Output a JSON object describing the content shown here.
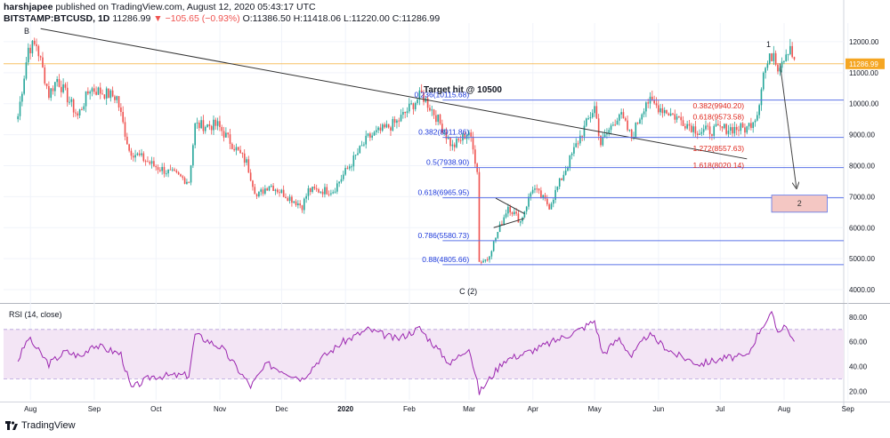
{
  "header": {
    "publisher": "harshjapee",
    "published_text": "published on TradingView.com, August 12, 2020 05:43:17 UTC",
    "symbol": "BITSTAMP:BTCUSD, 1D",
    "last": "11286.99",
    "change": "−105.65 (−0.93%)",
    "ohlc": "O:11386.50 H:11418.06 L:11220.00 C:11286.99"
  },
  "footer": {
    "brand": "TradingView"
  },
  "colors": {
    "up": "#26a69a",
    "down": "#ef5350",
    "fib_line": "#5b73e8",
    "fib_text_blue": "#1e3adb",
    "fib_text_red": "#e0281e",
    "rsi": "#9c27b0",
    "rsi_band": "#f3e5f5",
    "price_line": "#f5a623",
    "target_box": "#f4c7c3"
  },
  "chart_data": [
    {
      "type": "candlestick",
      "title": "BITSTAMP:BTCUSD, 1D",
      "ylim": [
        3600,
        12600
      ],
      "y_ticks": [
        4000,
        5000,
        6000,
        7000,
        8000,
        9000,
        10000,
        11000,
        12000
      ],
      "y_tick_labels": [
        "4000.00",
        "5000.00",
        "6000.00",
        "7000.00",
        "8000.00",
        "9000.00",
        "10000.00",
        "11000.00",
        "12000.00"
      ],
      "x_tick_labels": [
        "Aug",
        "Sep",
        "Oct",
        "Nov",
        "Dec",
        "2020",
        "Feb",
        "Mar",
        "Apr",
        "May",
        "Jun",
        "Jul",
        "Aug",
        "Sep"
      ],
      "last_price": 11286.99,
      "last_price_label": "11286.99",
      "trend_points": [
        {
          "date": "2019-08-01",
          "close": 9600
        },
        {
          "date": "2019-08-06",
          "close": 11800
        },
        {
          "date": "2019-08-10",
          "close": 11900
        },
        {
          "date": "2019-08-16",
          "close": 10300
        },
        {
          "date": "2019-08-20",
          "close": 10800
        },
        {
          "date": "2019-08-30",
          "close": 9600
        },
        {
          "date": "2019-09-05",
          "close": 10500
        },
        {
          "date": "2019-09-18",
          "close": 10200
        },
        {
          "date": "2019-09-24",
          "close": 8500
        },
        {
          "date": "2019-10-06",
          "close": 8000
        },
        {
          "date": "2019-10-23",
          "close": 7500
        },
        {
          "date": "2019-10-26",
          "close": 9300
        },
        {
          "date": "2019-11-06",
          "close": 9300
        },
        {
          "date": "2019-11-20",
          "close": 8100
        },
        {
          "date": "2019-11-25",
          "close": 7000
        },
        {
          "date": "2019-12-01",
          "close": 7400
        },
        {
          "date": "2019-12-17",
          "close": 6700
        },
        {
          "date": "2019-12-20",
          "close": 7200
        },
        {
          "date": "2020-01-01",
          "close": 7200
        },
        {
          "date": "2020-01-18",
          "close": 8900
        },
        {
          "date": "2020-02-01",
          "close": 9400
        },
        {
          "date": "2020-02-13",
          "close": 10300
        },
        {
          "date": "2020-02-20",
          "close": 9600
        },
        {
          "date": "2020-02-28",
          "close": 8600
        },
        {
          "date": "2020-03-07",
          "close": 9100
        },
        {
          "date": "2020-03-11",
          "close": 7900
        },
        {
          "date": "2020-03-12",
          "close": 4900
        },
        {
          "date": "2020-03-16",
          "close": 5000
        },
        {
          "date": "2020-03-26",
          "close": 6700
        },
        {
          "date": "2020-04-01",
          "close": 6200
        },
        {
          "date": "2020-04-07",
          "close": 7300
        },
        {
          "date": "2020-04-15",
          "close": 6700
        },
        {
          "date": "2020-04-29",
          "close": 8800
        },
        {
          "date": "2020-05-07",
          "close": 9900
        },
        {
          "date": "2020-05-10",
          "close": 8700
        },
        {
          "date": "2020-05-19",
          "close": 9700
        },
        {
          "date": "2020-05-25",
          "close": 8900
        },
        {
          "date": "2020-06-01",
          "close": 10100
        },
        {
          "date": "2020-06-10",
          "close": 9800
        },
        {
          "date": "2020-06-27",
          "close": 9100
        },
        {
          "date": "2020-07-10",
          "close": 9200
        },
        {
          "date": "2020-07-20",
          "close": 9200
        },
        {
          "date": "2020-07-25",
          "close": 9700
        },
        {
          "date": "2020-07-28",
          "close": 11000
        },
        {
          "date": "2020-08-02",
          "close": 11700
        },
        {
          "date": "2020-08-04",
          "close": 11200
        },
        {
          "date": "2020-08-10",
          "close": 11900
        },
        {
          "date": "2020-08-12",
          "close": 11287
        }
      ],
      "fib_levels_left": [
        {
          "label": "0.236(10115.68)",
          "value": 10115.68
        },
        {
          "label": "0.382(8911.86)",
          "value": 8911.86
        },
        {
          "label": "0.5(7938.90)",
          "value": 7938.9
        },
        {
          "label": "0.618(6965.95)",
          "value": 6965.95
        },
        {
          "label": "0.786(5580.73)",
          "value": 5580.73
        },
        {
          "label": "0.88(4805.66)",
          "value": 4805.66
        }
      ],
      "fib_levels_right": [
        {
          "label": "0.382(9940.20)",
          "value": 9940.2
        },
        {
          "label": "0.618(9573.58)",
          "value": 9573.58
        },
        {
          "label": "1.272(8557.63)",
          "value": 8557.63
        },
        {
          "label": "1.618(8020.14)",
          "value": 8020.14
        }
      ],
      "annotations": {
        "b": "B",
        "c": "C (2)",
        "one": "1",
        "target": "Target hit @ 10500",
        "box_label": "2"
      }
    },
    {
      "type": "line",
      "title": "RSI (14, close)",
      "ylim": [
        13,
        90
      ],
      "y_ticks": [
        20,
        40,
        60,
        80
      ],
      "y_tick_labels": [
        "20.00",
        "40.00",
        "60.00",
        "80.00"
      ],
      "band": [
        30,
        70
      ],
      "series": [
        {
          "name": "RSI",
          "points": [
            {
              "date": "2019-08-01",
              "value": 45
            },
            {
              "date": "2019-08-06",
              "value": 63
            },
            {
              "date": "2019-08-16",
              "value": 42
            },
            {
              "date": "2019-08-24",
              "value": 52
            },
            {
              "date": "2019-09-01",
              "value": 48
            },
            {
              "date": "2019-09-06",
              "value": 58
            },
            {
              "date": "2019-09-20",
              "value": 50
            },
            {
              "date": "2019-09-25",
              "value": 22
            },
            {
              "date": "2019-10-05",
              "value": 32
            },
            {
              "date": "2019-10-23",
              "value": 33
            },
            {
              "date": "2019-10-26",
              "value": 66
            },
            {
              "date": "2019-11-08",
              "value": 55
            },
            {
              "date": "2019-11-22",
              "value": 24
            },
            {
              "date": "2019-11-30",
              "value": 42
            },
            {
              "date": "2019-12-17",
              "value": 30
            },
            {
              "date": "2019-12-25",
              "value": 45
            },
            {
              "date": "2020-01-06",
              "value": 60
            },
            {
              "date": "2020-01-18",
              "value": 70
            },
            {
              "date": "2020-02-01",
              "value": 62
            },
            {
              "date": "2020-02-12",
              "value": 71
            },
            {
              "date": "2020-02-27",
              "value": 42
            },
            {
              "date": "2020-03-07",
              "value": 56
            },
            {
              "date": "2020-03-12",
              "value": 19
            },
            {
              "date": "2020-03-24",
              "value": 45
            },
            {
              "date": "2020-04-02",
              "value": 50
            },
            {
              "date": "2020-04-10",
              "value": 55
            },
            {
              "date": "2020-04-30",
              "value": 70
            },
            {
              "date": "2020-05-07",
              "value": 77
            },
            {
              "date": "2020-05-11",
              "value": 50
            },
            {
              "date": "2020-05-19",
              "value": 63
            },
            {
              "date": "2020-05-25",
              "value": 48
            },
            {
              "date": "2020-06-02",
              "value": 66
            },
            {
              "date": "2020-06-15",
              "value": 50
            },
            {
              "date": "2020-06-27",
              "value": 42
            },
            {
              "date": "2020-07-10",
              "value": 47
            },
            {
              "date": "2020-07-20",
              "value": 48
            },
            {
              "date": "2020-07-27",
              "value": 72
            },
            {
              "date": "2020-08-01",
              "value": 82
            },
            {
              "date": "2020-08-04",
              "value": 68
            },
            {
              "date": "2020-08-07",
              "value": 74
            },
            {
              "date": "2020-08-10",
              "value": 67
            },
            {
              "date": "2020-08-12",
              "value": 58
            }
          ]
        }
      ]
    }
  ]
}
